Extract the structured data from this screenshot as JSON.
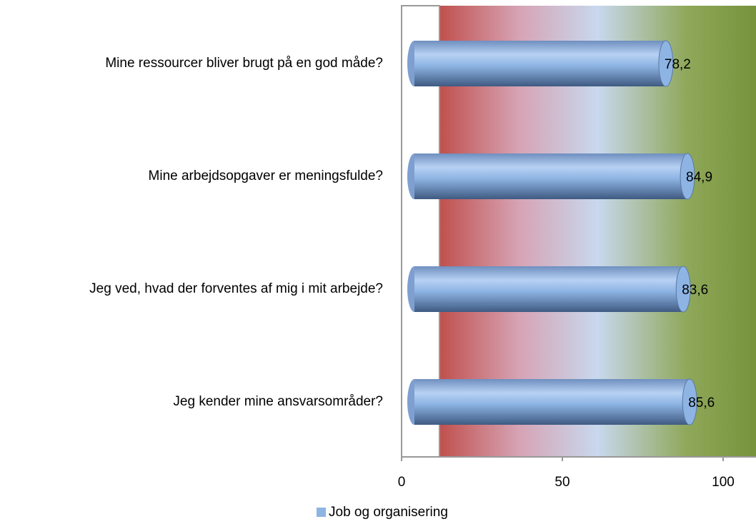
{
  "chart_data": {
    "type": "bar",
    "orientation": "horizontal",
    "categories": [
      "Mine ressourcer bliver brugt på en god måde?",
      "Mine arbejdsopgaver er meningsfulde?",
      "Jeg ved, hvad der forventes af mig i mit arbejde?",
      "Jeg kender mine ansvarsområder?"
    ],
    "series": [
      {
        "name": "Job og organisering",
        "color": "#8db4e3",
        "values": [
          78.2,
          84.9,
          83.6,
          85.6
        ],
        "value_labels": [
          "78,2",
          "84,9",
          "83,6",
          "85,6"
        ]
      }
    ],
    "xlim": [
      0,
      110
    ],
    "xticks": [
      0,
      50,
      100
    ],
    "legend": "bottom"
  }
}
